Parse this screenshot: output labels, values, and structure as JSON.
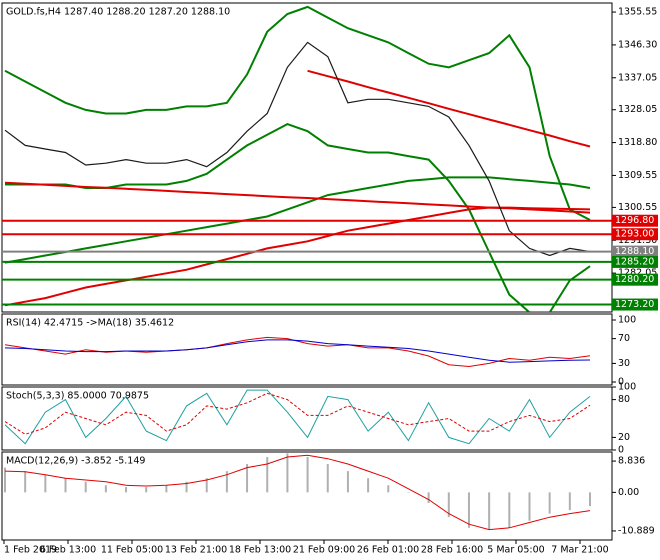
{
  "chart_data": [
    {
      "type": "line",
      "title": "GOLD.fs,H4  1287.40 1288.20 1287.20 1288.10",
      "ylim": [
        1271.1,
        1358.1
      ],
      "yticks": [
        1355.55,
        {
          "value": 1346.3,
          "label": "1346.30"
        },
        1337.05,
        1328.05,
        {
          "value": 1318.8,
          "label": "1318.80"
        },
        1309.55,
        1300.55,
        {
          "value": 1291.3,
          "label": "1291.30"
        },
        1282.05
      ],
      "levels": [
        {
          "value": 1296.8,
          "label": "1296.80",
          "color": "#e00000"
        },
        {
          "value": 1293.0,
          "label": "1293.00",
          "color": "#e00000"
        },
        {
          "value": 1288.1,
          "label": "1288.10",
          "color": "#808080"
        },
        {
          "value": 1285.2,
          "label": "1285.20",
          "color": "#008000"
        },
        {
          "value": 1280.2,
          "label": "1280.20",
          "color": "#008000"
        },
        {
          "value": 1273.2,
          "label": "1273.20",
          "color": "#008000"
        }
      ],
      "series": [
        {
          "color": "#008000",
          "width": 2,
          "values": [
            1339,
            1336,
            1333,
            1330,
            1328,
            1327,
            1327,
            1328,
            1328,
            1329,
            1329,
            1330,
            1338,
            1350,
            1355,
            1357,
            1354,
            1351,
            1349,
            1347,
            1344,
            1341,
            1340,
            1342,
            1344,
            1349,
            1340,
            1315,
            1300,
            1297
          ]
        },
        {
          "color": "#008000",
          "width": 2,
          "values": [
            1307,
            1307,
            1307,
            1307,
            1306,
            1306,
            1307,
            1307,
            1307,
            1308,
            1310,
            1314,
            1318,
            1321,
            1324,
            1322,
            1318,
            1317,
            1316,
            1316,
            1315,
            1314,
            1308,
            1300,
            1288,
            1276,
            1271,
            1271,
            1280,
            1284
          ]
        },
        {
          "color": "#008000",
          "width": 2,
          "values": [
            1285,
            1286,
            1287,
            1288,
            1289,
            1290,
            1291,
            1292,
            1293,
            1294,
            1295,
            1296,
            1297,
            1298,
            1300,
            1302,
            1304,
            1305,
            1306,
            1307,
            1308,
            1308.5,
            1309,
            1309,
            1309,
            1308.5,
            1308,
            1307.5,
            1307,
            1306
          ]
        },
        {
          "color": "#e00000",
          "width": 2,
          "values": [
            1273,
            1274,
            1275,
            1276.5,
            1278,
            1279,
            1280,
            1281,
            1282,
            1283,
            1284.5,
            1286,
            1287.5,
            1289,
            1290,
            1291,
            1292.5,
            1294,
            1295,
            1296,
            1297,
            1298,
            1299,
            1300,
            1300.5,
            1300.5,
            1300.3,
            1300.2,
            1300.1,
            1300
          ]
        },
        {
          "color": "#e00000",
          "width": 2,
          "values": [
            1307.5,
            1307.2,
            1306.9,
            1306.6,
            1306.3,
            1306.1,
            1305.8,
            1305.5,
            1305.2,
            1304.9,
            1304.6,
            1304.3,
            1304,
            1303.7,
            1303.4,
            1303.2,
            1302.9,
            1302.6,
            1302.3,
            1302,
            1301.7,
            1301.4,
            1301.1,
            1300.8,
            1300.5,
            1300.3,
            1300,
            1299.7,
            1299.4,
            1299.1
          ]
        },
        {
          "color": "#e00000",
          "width": 2,
          "values": [
            null,
            null,
            null,
            null,
            null,
            null,
            null,
            null,
            null,
            null,
            null,
            null,
            null,
            null,
            null,
            1339,
            1337.5,
            1336,
            1334.4,
            1332.9,
            1331.4,
            1329.9,
            1328.3,
            1326.8,
            1325.3,
            1323.8,
            1322.3,
            1320.8,
            1319.2,
            1317.7
          ]
        },
        {
          "color": "#1a1a1a",
          "width": 1.2,
          "values": [
            1322.3,
            1318,
            1317,
            1316,
            1312.5,
            1313,
            1314,
            1313,
            1313,
            1314,
            1312,
            1316,
            1322,
            1327,
            1340,
            1347,
            1343,
            1330,
            1331,
            1331,
            1330,
            1329,
            1326,
            1318,
            1308,
            1294,
            1289,
            1287,
            1289,
            1288.1
          ]
        }
      ]
    },
    {
      "type": "line",
      "title": "RSI(14) 42.4715  ->MA(18) 35.4612",
      "ylim": [
        -4.8,
        109.7
      ],
      "yticks": [
        100,
        70,
        30,
        0
      ],
      "series": [
        {
          "color": "#e00000",
          "width": 1,
          "values": [
            60,
            55,
            50,
            45,
            52,
            48,
            50,
            48,
            50,
            52,
            55,
            62,
            68,
            72,
            70,
            62,
            58,
            60,
            55,
            55,
            50,
            42,
            28,
            25,
            30,
            38,
            35,
            40,
            38,
            42.4715
          ]
        },
        {
          "color": "#0000cc",
          "width": 1,
          "values": [
            55,
            54,
            52,
            50,
            49,
            49,
            50,
            50,
            50,
            52,
            55,
            60,
            65,
            68,
            68,
            66,
            62,
            60,
            58,
            56,
            54,
            50,
            45,
            40,
            35,
            32,
            33,
            34,
            35,
            35.4612
          ]
        }
      ]
    },
    {
      "type": "line",
      "title": "Stoch(5,3,3) 85.0000 70.9875",
      "ylim": [
        0,
        100
      ],
      "yticks": [
        100,
        80,
        20,
        0
      ],
      "series": [
        {
          "color": "#20a0a0",
          "width": 1,
          "values": [
            40,
            10,
            60,
            80,
            20,
            50,
            85,
            30,
            15,
            70,
            90,
            40,
            95,
            95,
            60,
            20,
            85,
            80,
            30,
            60,
            15,
            75,
            20,
            10,
            50,
            30,
            80,
            20,
            60,
            85
          ]
        },
        {
          "color": "#e00000",
          "width": 1,
          "dash": true,
          "values": [
            45,
            25,
            35,
            60,
            50,
            40,
            60,
            55,
            30,
            40,
            70,
            65,
            75,
            90,
            80,
            55,
            55,
            70,
            60,
            50,
            40,
            45,
            50,
            30,
            30,
            45,
            55,
            45,
            50,
            70.9875
          ]
        }
      ]
    },
    {
      "type": "line",
      "title": "MACD(12,26,9) -3.852 -5.149",
      "ylim": [
        -13.45,
        11.4
      ],
      "yticks": [
        8.836,
        {
          "value": 0,
          "label": "0.00"
        },
        -10.889
      ],
      "series": [
        {
          "color": "#b0b0b0",
          "bars": true,
          "values": [
            7,
            6,
            5,
            4,
            3,
            2,
            1.5,
            1.5,
            2,
            3,
            4,
            6,
            8,
            10,
            11,
            10,
            8,
            6,
            4,
            2,
            0,
            -3,
            -7,
            -10,
            -10.5,
            -10,
            -8,
            -6,
            -5,
            -3.852
          ]
        },
        {
          "color": "#e00000",
          "width": 1,
          "values": [
            6,
            5.8,
            5,
            4,
            3.5,
            3,
            2,
            1.8,
            2,
            2.5,
            3.5,
            5,
            7,
            8,
            10,
            10.5,
            9.5,
            8,
            6,
            4,
            1,
            -2,
            -6,
            -9,
            -10.5,
            -10,
            -8.5,
            -7,
            -6,
            -5.149
          ]
        }
      ],
      "x_labels": [
        "1 Feb 2019",
        "6 Feb 13:00",
        "11 Feb 05:00",
        "13 Feb 21:00",
        "18 Feb 13:00",
        "21 Feb 09:00",
        "26 Feb 01:00",
        "28 Feb 16:00",
        "5 Mar 05:00",
        "7 Mar 21:00"
      ]
    }
  ]
}
